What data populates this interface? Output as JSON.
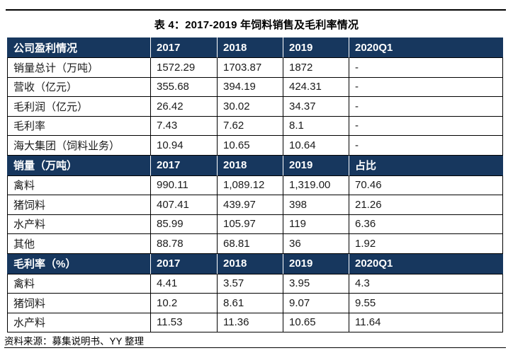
{
  "page": {
    "title": "表 4：2017-2019 年饲料销售及毛利率情况",
    "source_note": "资料来源：募集说明书、YY 整理"
  },
  "colors": {
    "header_bg": "#17375E",
    "header_text": "#FFFFFF",
    "border": "#000000",
    "body_text": "#1A1A1A"
  },
  "table": {
    "column_count": 5,
    "sections": [
      {
        "header": [
          "公司盈利情况",
          "2017",
          "2018",
          "2019",
          "2020Q1"
        ],
        "rows": [
          [
            "销量总计（万吨）",
            "1572.29",
            "1703.87",
            "1872",
            "-"
          ],
          [
            "营收（亿元）",
            "355.68",
            "394.19",
            "424.31",
            "-"
          ],
          [
            "毛利润（亿元）",
            "26.42",
            "30.02",
            "34.37",
            "-"
          ],
          [
            "毛利率",
            "7.43",
            "7.62",
            "8.1",
            "-"
          ],
          [
            "海大集团（饲料业务）",
            "10.94",
            "10.65",
            "10.64",
            "-"
          ]
        ]
      },
      {
        "header": [
          "销量（万吨）",
          "2017",
          "2018",
          "2019",
          "占比"
        ],
        "rows": [
          [
            "禽料",
            "990.11",
            "1,089.12",
            "1,319.00",
            "70.46"
          ],
          [
            "猪饲料",
            "407.41",
            "439.97",
            "398",
            "21.26"
          ],
          [
            "水产料",
            "85.99",
            "105.97",
            "119",
            "6.36"
          ],
          [
            "其他",
            "88.78",
            "68.81",
            "36",
            "1.92"
          ]
        ]
      },
      {
        "header": [
          "毛利率（%）",
          "2017",
          "2018",
          "2019",
          "2020Q1"
        ],
        "rows": [
          [
            "禽料",
            "4.41",
            "3.57",
            "3.95",
            "4.3"
          ],
          [
            "猪饲料",
            "10.2",
            "8.61",
            "9.07",
            "9.55"
          ],
          [
            "水产料",
            "11.53",
            "11.36",
            "10.65",
            "11.64"
          ]
        ]
      }
    ]
  }
}
